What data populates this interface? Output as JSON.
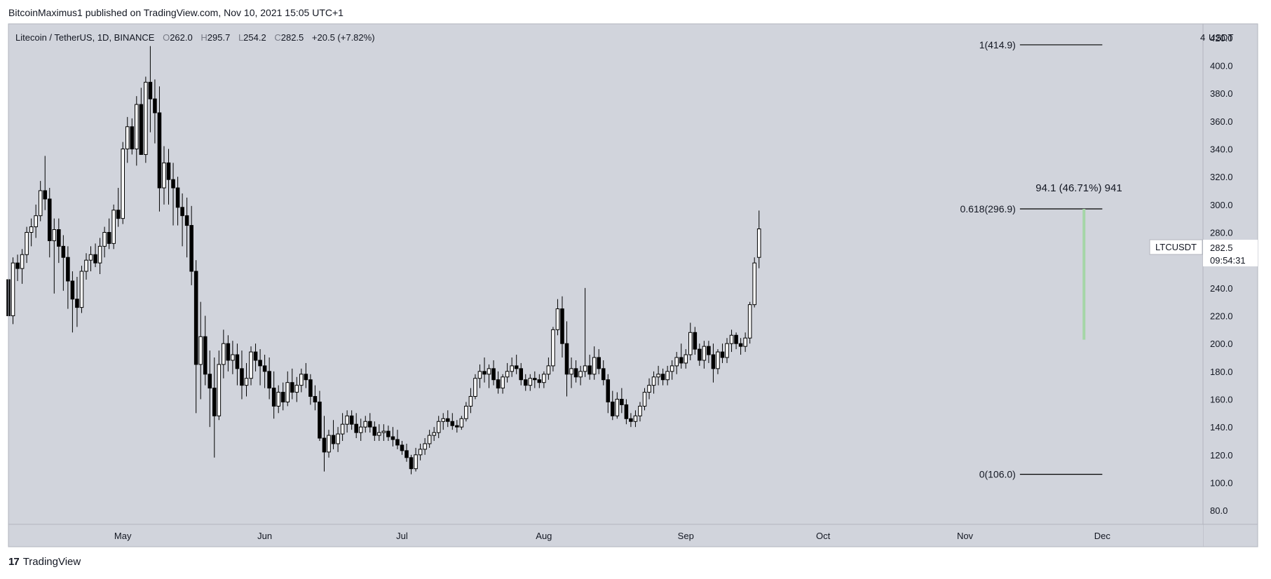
{
  "header": {
    "publisher_line": "BitcoinMaximus1 published on TradingView.com, Nov 10, 2021 15:05 UTC+1"
  },
  "legend": {
    "symbol": "Litecoin / TetherUS, 1D, BINANCE",
    "o_label": "O",
    "o": "262.0",
    "h_label": "H",
    "h": "295.7",
    "l_label": "L",
    "l": "254.2",
    "c_label": "C",
    "c": "282.5",
    "change": "+20.5 (+7.82%)"
  },
  "axis": {
    "currency_label": "USDT",
    "currency_prefix": "4"
  },
  "price_label": {
    "ticker": "LTCUSDT",
    "price": "282.5",
    "countdown": "09:54:31"
  },
  "fib": {
    "level_1": "1(414.9)",
    "level_618": "0.618(296.9)",
    "level_0": "0(106.0)"
  },
  "measure_label": "94.1 (46.71%) 941",
  "footer": {
    "brand": "TradingView",
    "logo_glyph": "17"
  },
  "colors": {
    "plot_bg": "#d1d4dc",
    "bull": "#ffffff",
    "bear": "#000000",
    "measure": "#a5d6a7"
  },
  "chart_data": {
    "type": "candlestick",
    "title": "Litecoin / TetherUS, 1D, BINANCE",
    "ylim": [
      70,
      430
    ],
    "y_ticks": [
      "80.0",
      "100.0",
      "120.0",
      "140.0",
      "160.0",
      "180.0",
      "200.0",
      "220.0",
      "240.0",
      "260.0",
      "280.0",
      "300.0",
      "320.0",
      "340.0",
      "360.0",
      "380.0",
      "400.0",
      "420.0"
    ],
    "x_start": "2021-04-06",
    "x_end": "2021-12-23",
    "x_ticks": [
      {
        "date": "2021-05-01",
        "label": "May"
      },
      {
        "date": "2021-06-01",
        "label": "Jun"
      },
      {
        "date": "2021-07-01",
        "label": "Jul"
      },
      {
        "date": "2021-08-01",
        "label": "Aug"
      },
      {
        "date": "2021-09-01",
        "label": "Sep"
      },
      {
        "date": "2021-10-01",
        "label": "Oct"
      },
      {
        "date": "2021-11-01",
        "label": "Nov"
      },
      {
        "date": "2021-12-01",
        "label": "Dec"
      }
    ],
    "candles_start_date": "2021-04-06",
    "candles_ohlc": [
      [
        246,
        251,
        210,
        220
      ],
      [
        220,
        262,
        214,
        258
      ],
      [
        258,
        264,
        245,
        254
      ],
      [
        254,
        268,
        243,
        264
      ],
      [
        264,
        284,
        258,
        280
      ],
      [
        280,
        290,
        270,
        284
      ],
      [
        284,
        300,
        276,
        292
      ],
      [
        292,
        317,
        288,
        310
      ],
      [
        310,
        335,
        296,
        304
      ],
      [
        304,
        312,
        262,
        274
      ],
      [
        274,
        290,
        236,
        282
      ],
      [
        282,
        290,
        258,
        270
      ],
      [
        270,
        278,
        238,
        262
      ],
      [
        262,
        270,
        225,
        245
      ],
      [
        245,
        252,
        208,
        232
      ],
      [
        232,
        248,
        212,
        226
      ],
      [
        226,
        256,
        222,
        252
      ],
      [
        252,
        265,
        246,
        260
      ],
      [
        260,
        270,
        252,
        264
      ],
      [
        264,
        272,
        255,
        258
      ],
      [
        258,
        276,
        250,
        270
      ],
      [
        270,
        284,
        262,
        280
      ],
      [
        280,
        290,
        268,
        272
      ],
      [
        272,
        300,
        268,
        296
      ],
      [
        296,
        312,
        284,
        290
      ],
      [
        290,
        345,
        286,
        340
      ],
      [
        340,
        363,
        330,
        356
      ],
      [
        356,
        362,
        336,
        340
      ],
      [
        340,
        378,
        328,
        372
      ],
      [
        372,
        384,
        346,
        336
      ],
      [
        336,
        392,
        330,
        388
      ],
      [
        388,
        414,
        352,
        376
      ],
      [
        376,
        390,
        344,
        366
      ],
      [
        366,
        385,
        295,
        312
      ],
      [
        312,
        342,
        300,
        330
      ],
      [
        330,
        340,
        300,
        318
      ],
      [
        318,
        330,
        285,
        312
      ],
      [
        312,
        320,
        285,
        298
      ],
      [
        298,
        308,
        270,
        292
      ],
      [
        292,
        305,
        262,
        285
      ],
      [
        285,
        299,
        242,
        252
      ],
      [
        252,
        260,
        150,
        185
      ],
      [
        185,
        230,
        160,
        205
      ],
      [
        205,
        220,
        170,
        178
      ],
      [
        178,
        195,
        140,
        168
      ],
      [
        168,
        190,
        118,
        148
      ],
      [
        148,
        195,
        145,
        185
      ],
      [
        185,
        210,
        175,
        200
      ],
      [
        200,
        206,
        180,
        188
      ],
      [
        188,
        202,
        178,
        192
      ],
      [
        192,
        200,
        170,
        182
      ],
      [
        182,
        195,
        160,
        170
      ],
      [
        170,
        186,
        162,
        175
      ],
      [
        175,
        198,
        170,
        194
      ],
      [
        194,
        200,
        180,
        188
      ],
      [
        188,
        196,
        170,
        184
      ],
      [
        184,
        192,
        168,
        180
      ],
      [
        180,
        190,
        160,
        168
      ],
      [
        168,
        180,
        146,
        155
      ],
      [
        155,
        170,
        150,
        165
      ],
      [
        165,
        172,
        152,
        158
      ],
      [
        158,
        180,
        155,
        172
      ],
      [
        172,
        182,
        160,
        165
      ],
      [
        165,
        176,
        158,
        170
      ],
      [
        170,
        182,
        165,
        178
      ],
      [
        178,
        186,
        168,
        174
      ],
      [
        174,
        178,
        156,
        162
      ],
      [
        162,
        170,
        152,
        158
      ],
      [
        158,
        166,
        130,
        132
      ],
      [
        132,
        148,
        108,
        122
      ],
      [
        122,
        138,
        118,
        134
      ],
      [
        134,
        145,
        124,
        128
      ],
      [
        128,
        140,
        122,
        135
      ],
      [
        135,
        150,
        130,
        142
      ],
      [
        142,
        152,
        136,
        148
      ],
      [
        148,
        152,
        138,
        142
      ],
      [
        142,
        150,
        132,
        136
      ],
      [
        136,
        146,
        130,
        140
      ],
      [
        140,
        148,
        136,
        144
      ],
      [
        144,
        150,
        136,
        140
      ],
      [
        140,
        144,
        130,
        134
      ],
      [
        134,
        142,
        130,
        136
      ],
      [
        136,
        142,
        130,
        137
      ],
      [
        137,
        141,
        130,
        133
      ],
      [
        133,
        140,
        126,
        131
      ],
      [
        131,
        138,
        124,
        127
      ],
      [
        127,
        130,
        120,
        123
      ],
      [
        123,
        128,
        115,
        118
      ],
      [
        118,
        120,
        106,
        110
      ],
      [
        110,
        125,
        108,
        120
      ],
      [
        120,
        128,
        116,
        124
      ],
      [
        124,
        132,
        120,
        128
      ],
      [
        128,
        138,
        125,
        134
      ],
      [
        134,
        140,
        130,
        136
      ],
      [
        136,
        148,
        132,
        144
      ],
      [
        144,
        150,
        138,
        146
      ],
      [
        146,
        152,
        140,
        144
      ],
      [
        144,
        150,
        138,
        141
      ],
      [
        141,
        145,
        136,
        140
      ],
      [
        140,
        148,
        138,
        146
      ],
      [
        146,
        158,
        144,
        155
      ],
      [
        155,
        168,
        150,
        162
      ],
      [
        162,
        178,
        160,
        175
      ],
      [
        175,
        185,
        168,
        180
      ],
      [
        180,
        190,
        172,
        178
      ],
      [
        178,
        185,
        168,
        182
      ],
      [
        182,
        188,
        170,
        174
      ],
      [
        174,
        180,
        164,
        168
      ],
      [
        168,
        178,
        164,
        176
      ],
      [
        176,
        186,
        172,
        180
      ],
      [
        180,
        190,
        176,
        184
      ],
      [
        184,
        192,
        178,
        182
      ],
      [
        182,
        186,
        170,
        174
      ],
      [
        174,
        178,
        166,
        170
      ],
      [
        170,
        178,
        166,
        175
      ],
      [
        175,
        180,
        168,
        174
      ],
      [
        174,
        178,
        168,
        172
      ],
      [
        172,
        180,
        168,
        178
      ],
      [
        178,
        190,
        174,
        184
      ],
      [
        184,
        212,
        180,
        210
      ],
      [
        210,
        232,
        206,
        225
      ],
      [
        225,
        234,
        190,
        200
      ],
      [
        200,
        216,
        162,
        178
      ],
      [
        178,
        190,
        168,
        182
      ],
      [
        182,
        188,
        172,
        176
      ],
      [
        176,
        184,
        170,
        180
      ],
      [
        180,
        240,
        176,
        184
      ],
      [
        184,
        192,
        174,
        178
      ],
      [
        178,
        198,
        174,
        190
      ],
      [
        190,
        196,
        178,
        182
      ],
      [
        182,
        188,
        170,
        174
      ],
      [
        174,
        178,
        150,
        158
      ],
      [
        158,
        166,
        145,
        148
      ],
      [
        148,
        165,
        146,
        160
      ],
      [
        160,
        168,
        150,
        156
      ],
      [
        156,
        160,
        142,
        146
      ],
      [
        146,
        150,
        140,
        144
      ],
      [
        144,
        152,
        140,
        148
      ],
      [
        148,
        158,
        144,
        155
      ],
      [
        155,
        168,
        152,
        165
      ],
      [
        165,
        175,
        160,
        170
      ],
      [
        170,
        180,
        164,
        176
      ],
      [
        176,
        184,
        170,
        178
      ],
      [
        178,
        182,
        170,
        174
      ],
      [
        174,
        184,
        170,
        180
      ],
      [
        180,
        188,
        174,
        184
      ],
      [
        184,
        194,
        178,
        190
      ],
      [
        190,
        200,
        182,
        186
      ],
      [
        186,
        196,
        182,
        192
      ],
      [
        192,
        215,
        188,
        208
      ],
      [
        208,
        212,
        192,
        196
      ],
      [
        196,
        200,
        184,
        188
      ],
      [
        188,
        202,
        182,
        198
      ],
      [
        198,
        202,
        186,
        192
      ],
      [
        192,
        200,
        172,
        182
      ],
      [
        182,
        196,
        178,
        194
      ],
      [
        194,
        200,
        186,
        190
      ],
      [
        190,
        204,
        186,
        200
      ],
      [
        200,
        210,
        194,
        206
      ],
      [
        206,
        208,
        196,
        200
      ],
      [
        200,
        204,
        192,
        198
      ],
      [
        198,
        208,
        194,
        204
      ],
      [
        204,
        230,
        200,
        228
      ],
      [
        228,
        262,
        226,
        258
      ],
      [
        262,
        295.7,
        254.2,
        282.5
      ]
    ],
    "fib_levels": [
      {
        "ratio": 1,
        "price": 414.9,
        "label": "1(414.9)",
        "from": "2021-11-13",
        "to": "2021-12-01"
      },
      {
        "ratio": 0.618,
        "price": 296.9,
        "label": "0.618(296.9)",
        "from": "2021-11-13",
        "to": "2021-12-01"
      },
      {
        "ratio": 0,
        "price": 106.0,
        "label": "0(106.0)",
        "from": "2021-11-13",
        "to": "2021-12-01"
      }
    ],
    "measure": {
      "date": "2021-11-27",
      "from_price": 202.8,
      "to_price": 296.9,
      "label": "94.1 (46.71%) 941"
    },
    "last_price": 282.5
  }
}
